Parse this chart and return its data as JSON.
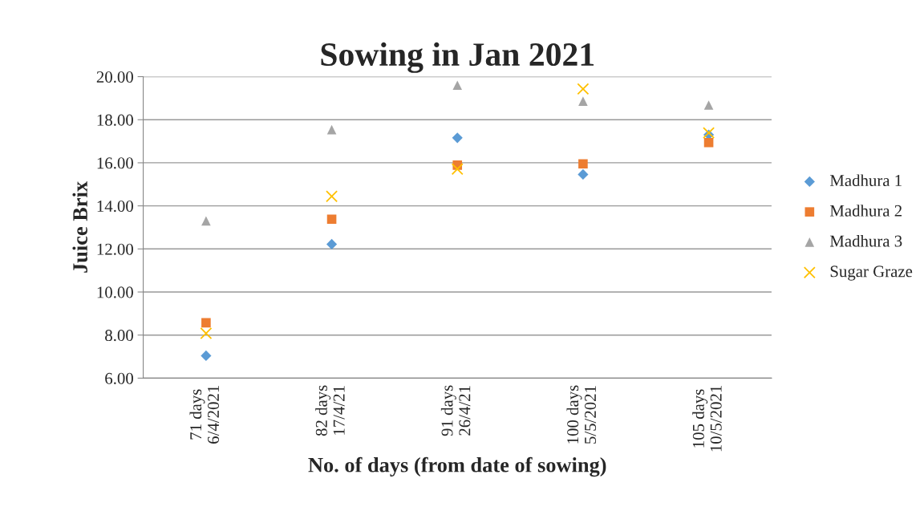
{
  "chart_data": {
    "type": "scatter",
    "title": "Sowing in Jan 2021",
    "xlabel": "No. of days (from date of sowing)",
    "ylabel": "Juice Brix",
    "categories": [
      "71 days\n6/4/2021",
      "82 days\n17/4/21",
      "91 days\n26/4/21",
      "100 days\n5/5/2021",
      "105 days\n10/5/2021"
    ],
    "series": [
      {
        "name": "Madhura 1",
        "color": "#5b9bd5",
        "marker": "diamond",
        "values": [
          7.04,
          12.22,
          17.16,
          15.46,
          17.3
        ]
      },
      {
        "name": "Madhura 2",
        "color": "#ed7d31",
        "marker": "square",
        "values": [
          8.57,
          13.38,
          15.89,
          15.95,
          16.94
        ]
      },
      {
        "name": "Madhura 3",
        "color": "#a5a5a5",
        "marker": "triangle",
        "values": [
          13.3,
          17.54,
          19.6,
          18.86,
          18.68
        ]
      },
      {
        "name": "Sugar Graze",
        "color": "#ffc000",
        "marker": "cross",
        "values": [
          8.08,
          14.44,
          15.71,
          19.43,
          17.39
        ]
      }
    ],
    "ylim": [
      6,
      20
    ],
    "yticks": [
      {
        "value": 6,
        "label": "6.00"
      },
      {
        "value": 8,
        "label": "8.00"
      },
      {
        "value": 10,
        "label": "10.00"
      },
      {
        "value": 12,
        "label": "12.00"
      },
      {
        "value": 14,
        "label": "14.00"
      },
      {
        "value": 16,
        "label": "16.00"
      },
      {
        "value": 18,
        "label": "18.00"
      },
      {
        "value": 20,
        "label": "20.00"
      }
    ],
    "grid": "y",
    "legend": "right"
  }
}
